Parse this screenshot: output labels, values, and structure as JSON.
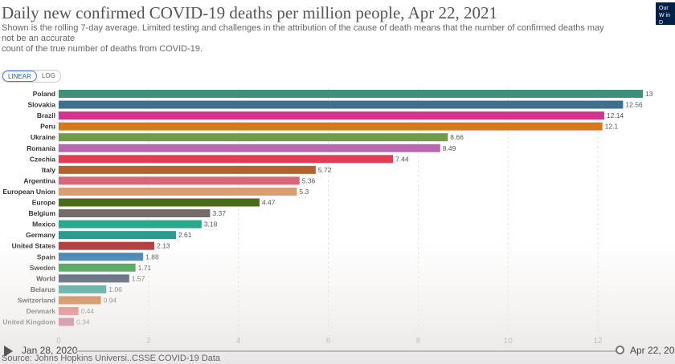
{
  "header": {
    "title": "Daily new confirmed COVID-19 deaths per million people, Apr 22, 2021",
    "subtitle_line1": "Shown is the rolling 7-day average. Limited testing and challenges in the attribution of the cause of death means that the number of confirmed deaths may",
    "subtitle_line2": "not be an accurate",
    "subtitle_line3": "count of the true number of deaths from COVID-19.",
    "logo_text": "Our W in D"
  },
  "scale_toggle": {
    "linear": "LINEAR",
    "log": "LOG"
  },
  "timeline": {
    "start": "Jan 28, 2020",
    "end": "Apr 22, 20"
  },
  "footer": {
    "source": "Source: Johns Hopkins Universi..CSSE COVID-19 Data"
  },
  "chart_data": {
    "type": "bar",
    "orientation": "horizontal",
    "title": "Daily new confirmed COVID-19 deaths per million people, Apr 22, 2021",
    "xlim": [
      0,
      13
    ],
    "x_ticks": [
      0,
      2,
      4,
      6,
      8,
      10,
      12
    ],
    "categories": [
      "Poland",
      "Slovakia",
      "Brazil",
      "Peru",
      "Ukraine",
      "Romania",
      "Czechia",
      "Italy",
      "Argentina",
      "European Union",
      "Europe",
      "Belgium",
      "Mexico",
      "Germany",
      "United States",
      "Spain",
      "Sweden",
      "World",
      "Belarus",
      "Switzerland",
      "Denmark",
      "United Kingdom"
    ],
    "values": [
      13.0,
      12.56,
      12.14,
      12.1,
      8.66,
      8.49,
      7.44,
      5.72,
      5.36,
      5.3,
      4.47,
      3.37,
      3.18,
      2.61,
      2.13,
      1.88,
      1.71,
      1.57,
      1.06,
      0.94,
      0.44,
      0.34
    ],
    "value_labels": [
      "13",
      "12.56",
      "12.14",
      "12.1",
      "8.66",
      "8.49",
      "7.44",
      "5.72",
      "5.36",
      "5.3",
      "4.47",
      "3.37",
      "3.18",
      "2.61",
      "2.13",
      "1.88",
      "1.71",
      "1.57",
      "1.06",
      "0.94",
      "0.44",
      "0.34"
    ],
    "colors": [
      "#3f8f7a",
      "#3e6f8f",
      "#d6338f",
      "#d47a1e",
      "#6f9b4a",
      "#b768b0",
      "#e03e52",
      "#b4622d",
      "#d9667a",
      "#d99f6a",
      "#4a6b1c",
      "#756a6a",
      "#2aa88a",
      "#2a9b8f",
      "#b23a3a",
      "#3c7fb0",
      "#3a9b4a",
      "#3d4d66",
      "#2a9b8f",
      "#c7621a",
      "#e05252",
      "#c23a6a"
    ]
  }
}
